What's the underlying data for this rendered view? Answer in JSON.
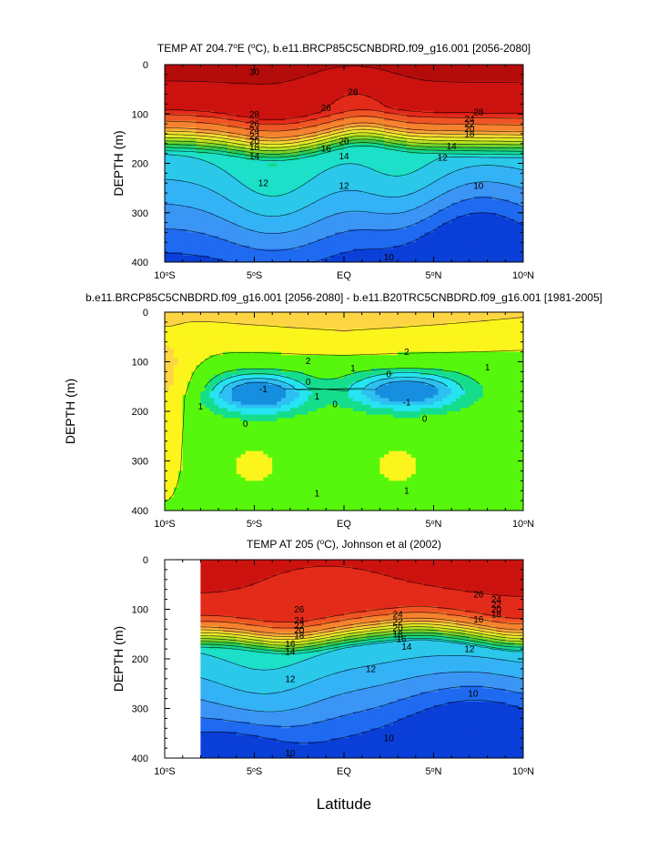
{
  "chart_data": [
    {
      "type": "contour",
      "title": "TEMP AT 204.7°E (°C), b.e11.BRCP85C5CNBDRD.f09_g16.001 [2056-2080]",
      "title_parts": {
        "pre": "TEMP AT 204.7",
        "sup": "o",
        "post": "E (",
        "sup2": "o",
        "post2": "C), b.e11.BRCP85C5CNBDRD.f09_g16.001 [2056-2080]"
      },
      "xlabel": "",
      "ylabel": "DEPTH (m)",
      "xlim": [
        -10,
        10
      ],
      "ylim": [
        0,
        400
      ],
      "x_ticks": [
        {
          "value": -10,
          "num": "10",
          "hemi": "S"
        },
        {
          "value": -5,
          "num": "5",
          "hemi": "S"
        },
        {
          "value": 0,
          "num": "EQ",
          "hemi": ""
        },
        {
          "value": 5,
          "num": "5",
          "hemi": "N"
        },
        {
          "value": 10,
          "num": "10",
          "hemi": "N"
        }
      ],
      "y_ticks": [
        "0",
        "100",
        "200",
        "300",
        "400"
      ],
      "contour_labels": [
        "30",
        "28",
        "26",
        "24",
        "22",
        "20",
        "18",
        "16",
        "14",
        "12",
        "10"
      ],
      "value_range": [
        9,
        31
      ]
    },
    {
      "type": "contour",
      "title": "b.e11.BRCP85C5CNBDRD.f09_g16.001 [2056-2080] - b.e11.B20TRC5CNBDRD.f09_g16.001 [1981-2005]",
      "xlabel": "",
      "ylabel": "DEPTH (m)",
      "xlim": [
        -10,
        10
      ],
      "ylim": [
        0,
        400
      ],
      "x_ticks": [
        {
          "value": -10,
          "num": "10",
          "hemi": "S"
        },
        {
          "value": -5,
          "num": "5",
          "hemi": "S"
        },
        {
          "value": 0,
          "num": "EQ",
          "hemi": ""
        },
        {
          "value": 5,
          "num": "5",
          "hemi": "N"
        },
        {
          "value": 10,
          "num": "10",
          "hemi": "N"
        }
      ],
      "y_ticks": [
        "0",
        "100",
        "200",
        "300",
        "400"
      ],
      "contour_labels": [
        "2",
        "1",
        "0",
        "-1"
      ],
      "value_range": [
        -2,
        3
      ]
    },
    {
      "type": "contour",
      "title": "TEMP AT 205 (°C), Johnson et al (2002)",
      "title_parts": {
        "pre": "TEMP AT 205 (",
        "sup": "o",
        "post": "C), Johnson et al (2002)"
      },
      "xlabel": "Latitude",
      "ylabel": "DEPTH (m)",
      "xlim": [
        -10,
        10
      ],
      "ylim": [
        0,
        400
      ],
      "data_xlim": [
        -8,
        10
      ],
      "x_ticks": [
        {
          "value": -10,
          "num": "10",
          "hemi": "S"
        },
        {
          "value": -5,
          "num": "5",
          "hemi": "S"
        },
        {
          "value": 0,
          "num": "EQ",
          "hemi": ""
        },
        {
          "value": 5,
          "num": "5",
          "hemi": "N"
        },
        {
          "value": 10,
          "num": "10",
          "hemi": "N"
        }
      ],
      "y_ticks": [
        "0",
        "100",
        "200",
        "300",
        "400"
      ],
      "contour_labels": [
        "26",
        "24",
        "22",
        "20",
        "18",
        "16",
        "14",
        "12",
        "10"
      ],
      "value_range": [
        9,
        30
      ]
    }
  ],
  "colors": {
    "temp_ramp": [
      "#0a3fd8",
      "#1f6af0",
      "#3b95f5",
      "#34b2f6",
      "#2bc8ea",
      "#1ce0c8",
      "#12d78e",
      "#2ec94c",
      "#75d42a",
      "#b9e221",
      "#e8ec2a",
      "#fbd435",
      "#fba53a",
      "#f6822e",
      "#ef5524",
      "#e32b1a",
      "#cc130f",
      "#b40b0b"
    ],
    "diff_ramp": [
      "#178fe0",
      "#2fc0f2",
      "#26e4f2",
      "#15dd8c",
      "#56f70c",
      "#fbf51d",
      "#fdd543",
      "#fba53a"
    ]
  }
}
